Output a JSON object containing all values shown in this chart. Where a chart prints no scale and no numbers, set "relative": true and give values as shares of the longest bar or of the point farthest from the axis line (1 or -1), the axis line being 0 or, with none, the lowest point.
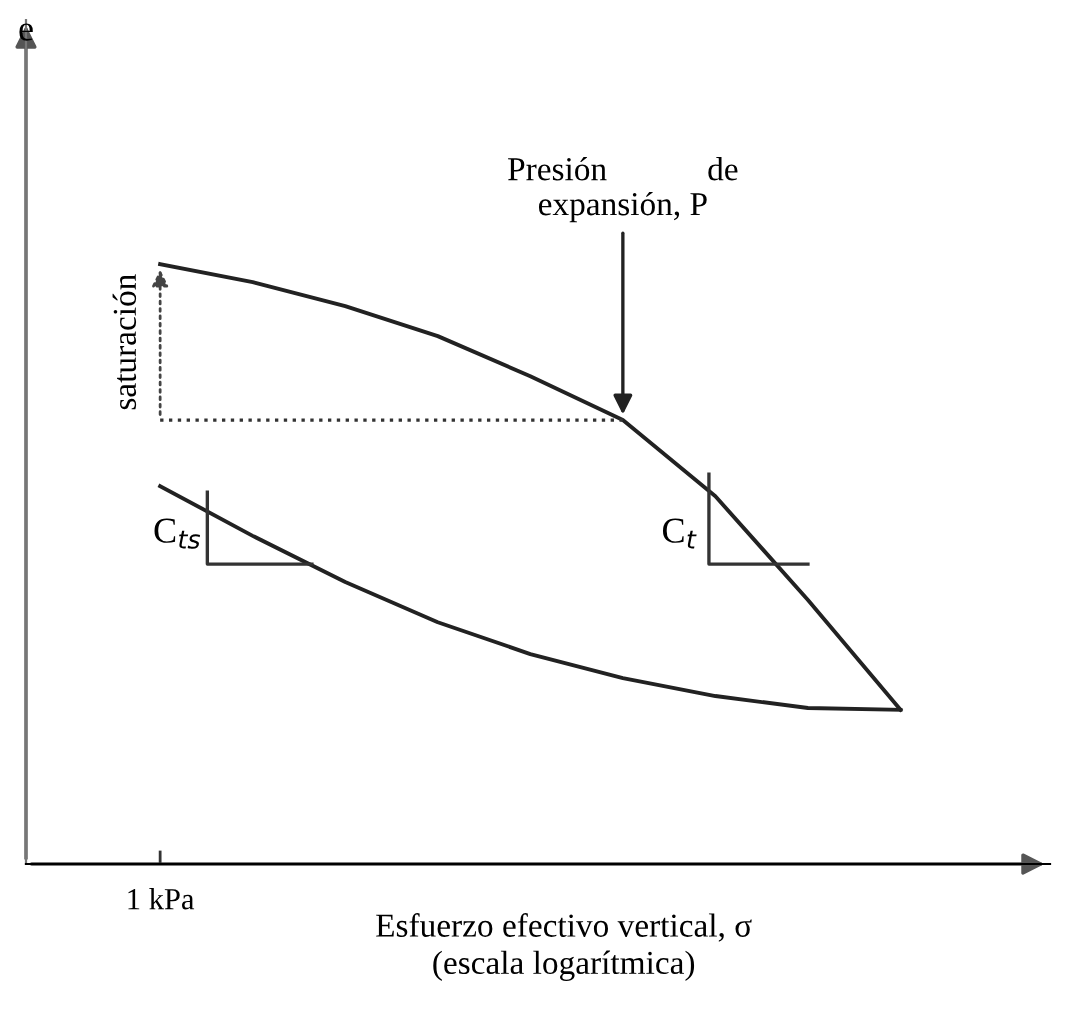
{
  "chart_data": {
    "type": "line",
    "relative": true,
    "xlabel": "Esfuerzo efectivo vertical, σ\n(escala logarítmica)",
    "categories": [
      null,
      null,
      null,
      null,
      null,
      null,
      null,
      null,
      null
    ],
    "series": [
      {
        "color": "#222222",
        "values": [
          1,
          0.97,
          0.93,
          0.88,
          0.813,
          0.74,
          0.613,
          0.44,
          0.257
        ]
      },
      {
        "color": "#222222",
        "values": [
          0.63,
          0.547,
          0.47,
          0.403,
          0.35,
          0.31,
          0.28,
          0.26,
          0.257
        ]
      },
      {
        "color": "#333333",
        "line_style": "dotted",
        "values": [
          0.74,
          0.74,
          0.74,
          0.74,
          0.74,
          0.74,
          null,
          null,
          null
        ]
      }
    ],
    "annotations": [
      "Presión            de\nexpansión, P",
      "saturación",
      "C$_{ts}$",
      "C$_{t}$",
      "1 kPa",
      "e"
    ],
    "marker": "none"
  }
}
